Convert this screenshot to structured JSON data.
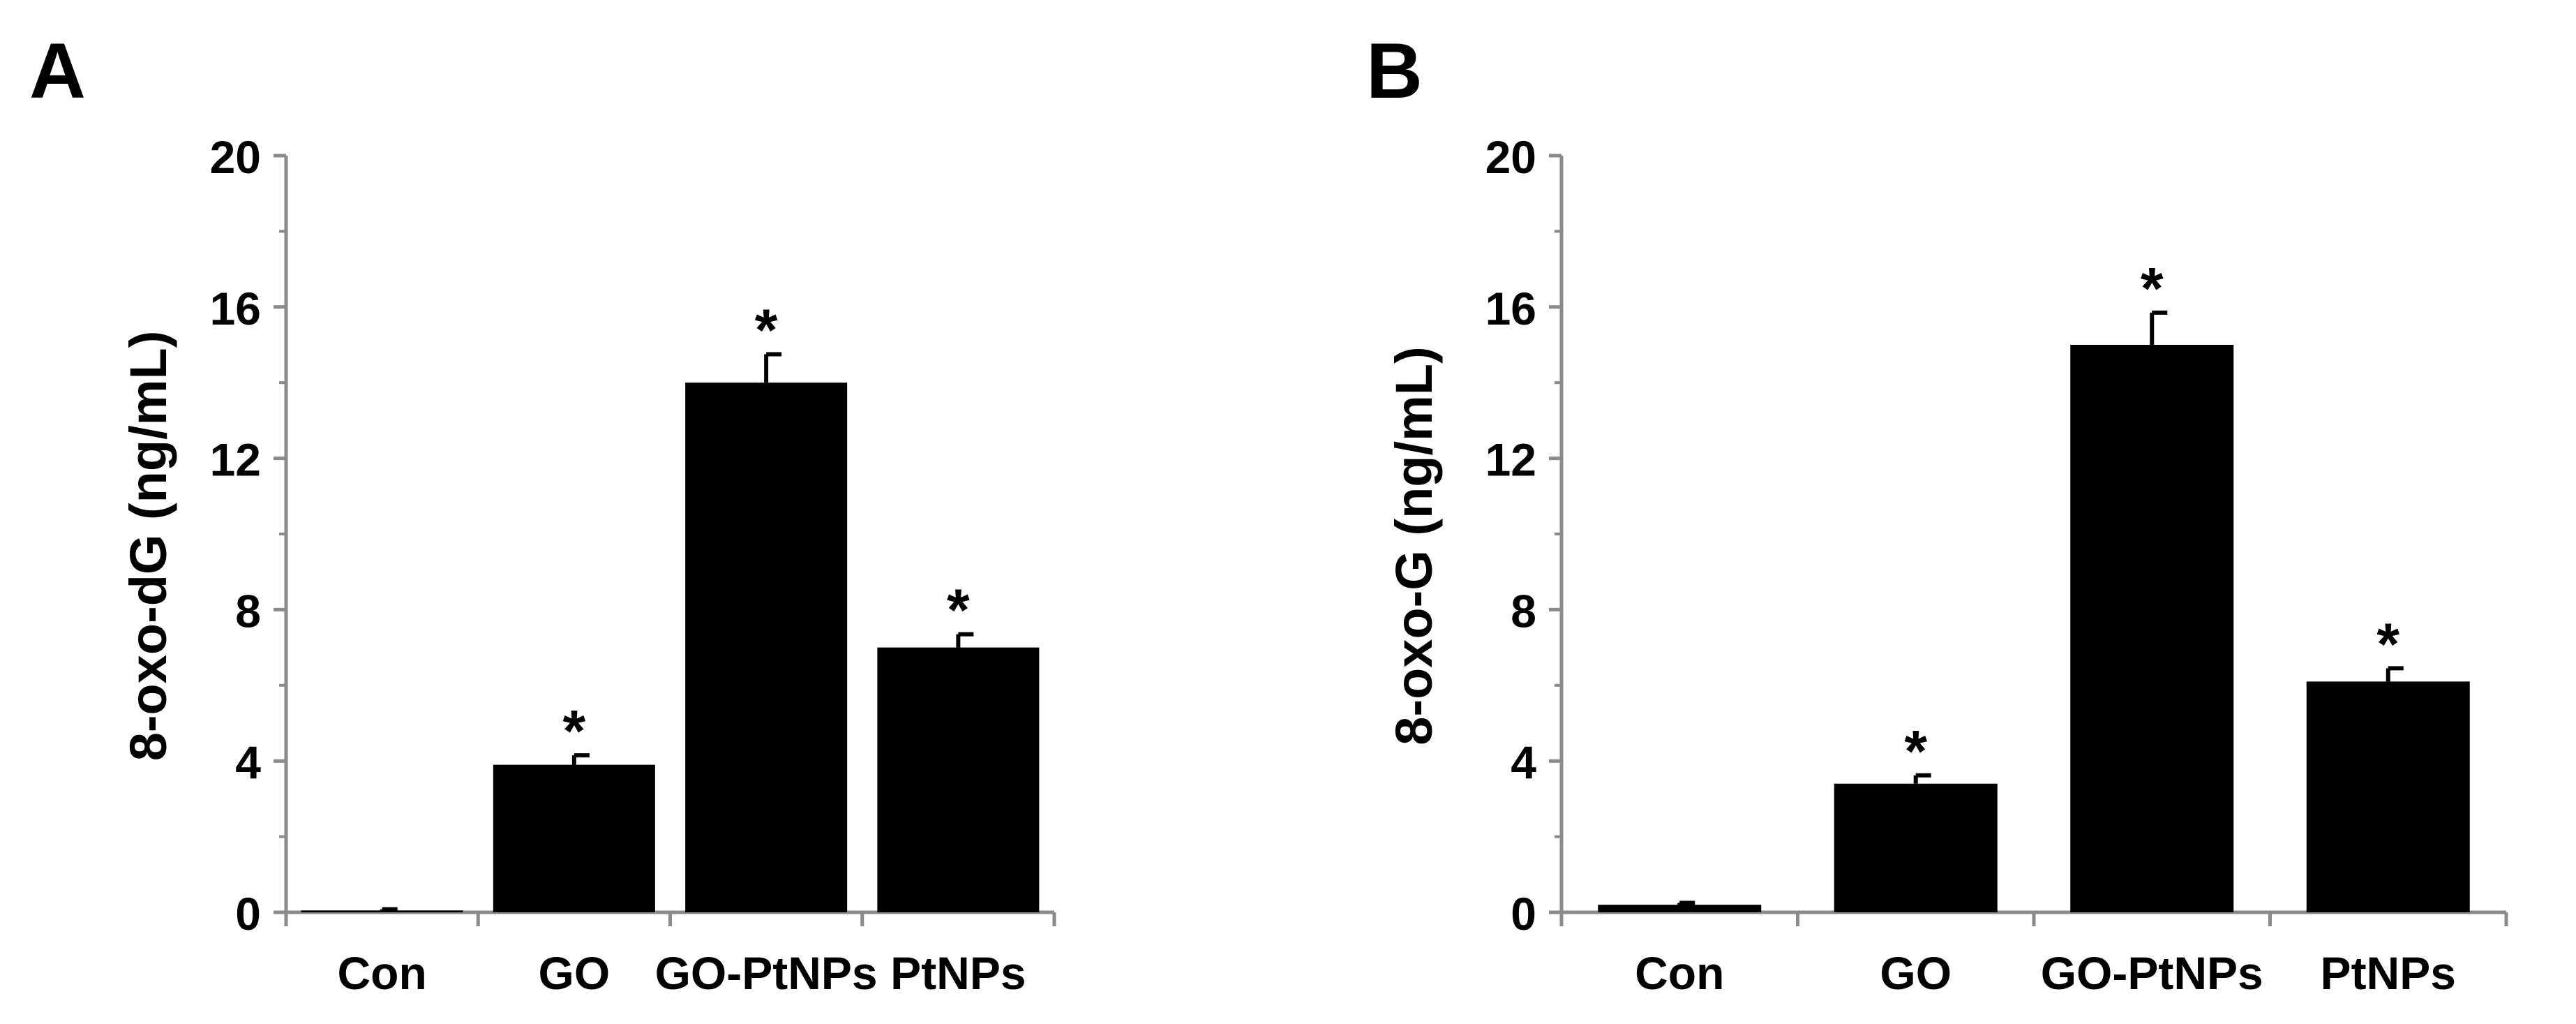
{
  "chart_data": [
    {
      "type": "bar",
      "panel_label": "A",
      "categories": [
        "Con",
        "GO",
        "GO-PtNPs",
        "PtNPs"
      ],
      "values": [
        0.05,
        3.9,
        14.0,
        7.0
      ],
      "error": [
        0.03,
        0.25,
        0.75,
        0.35
      ],
      "annotations": [
        "",
        "*",
        "*",
        "*"
      ],
      "ylabel": "8-oxo-dG (ng/mL)",
      "xlabel": "",
      "ylim": [
        0,
        20
      ],
      "yticks": [
        0,
        4,
        8,
        12,
        16,
        20
      ],
      "ytick_labels": [
        "0",
        "4",
        "8",
        "12",
        "16",
        "20"
      ],
      "grid": false,
      "legend": "none",
      "bar_color": "#000000",
      "axis_color": "#8a8a8a"
    },
    {
      "type": "bar",
      "panel_label": "B",
      "categories": [
        "Con",
        "GO",
        "GO-PtNPs",
        "PtNPs"
      ],
      "values": [
        0.2,
        3.4,
        15.0,
        6.1
      ],
      "error": [
        0.05,
        0.22,
        0.85,
        0.35
      ],
      "annotations": [
        "",
        "*",
        "*",
        "*"
      ],
      "ylabel": "8-oxo-G (ng/mL)",
      "xlabel": "",
      "ylim": [
        0,
        20
      ],
      "yticks": [
        0,
        4,
        8,
        12,
        16,
        20
      ],
      "ytick_labels": [
        "0",
        "4",
        "8",
        "12",
        "16",
        "20"
      ],
      "grid": false,
      "legend": "none",
      "bar_color": "#000000",
      "axis_color": "#8a8a8a"
    }
  ]
}
